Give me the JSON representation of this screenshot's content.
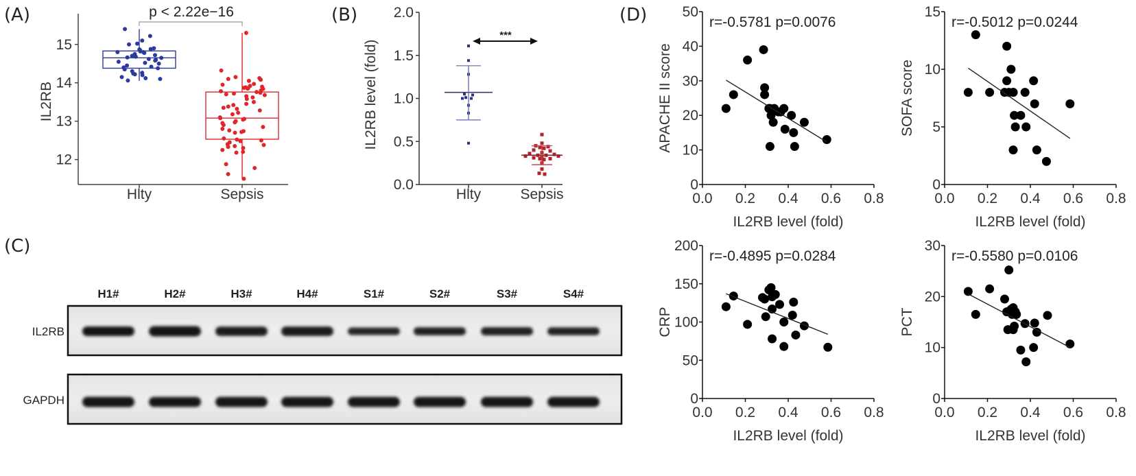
{
  "chart_data": [
    {
      "id": "A",
      "type": "box",
      "panel_label": "(A)",
      "ylabel": "IL2RB",
      "xlabel": "",
      "categories": [
        "Hlty",
        "Sepsis"
      ],
      "ylim": [
        11.35,
        15.8
      ],
      "yticks": [
        12,
        13,
        14,
        15
      ],
      "annotation": "p < 2.22e−16",
      "colors": {
        "Hlty": "#2b3a9e",
        "Sepsis": "#e0262a"
      },
      "boxes": [
        {
          "name": "Hlty",
          "q1": 14.38,
          "median": 14.65,
          "q3": 14.83,
          "whisker_low": 14.05,
          "whisker_high": 15.4
        },
        {
          "name": "Sepsis",
          "q1": 12.53,
          "median": 13.08,
          "q3": 13.76,
          "whisker_low": 11.5,
          "whisker_high": 15.3
        }
      ],
      "points": {
        "Hlty": [
          15.4,
          15.22,
          15.1,
          15.02,
          15.0,
          14.9,
          14.88,
          14.87,
          14.84,
          14.82,
          14.8,
          14.8,
          14.78,
          14.75,
          14.72,
          14.7,
          14.68,
          14.66,
          14.65,
          14.62,
          14.6,
          14.58,
          14.55,
          14.52,
          14.5,
          14.45,
          14.42,
          14.4,
          14.38,
          14.35,
          14.3,
          14.26,
          14.24,
          14.22,
          14.2,
          14.15,
          14.12,
          14.1,
          14.06
        ],
        "Sepsis": [
          15.3,
          14.32,
          14.15,
          14.12,
          14.1,
          14.08,
          14.05,
          13.97,
          13.95,
          13.92,
          13.9,
          13.88,
          13.87,
          13.86,
          13.85,
          13.84,
          13.8,
          13.78,
          13.76,
          13.74,
          13.72,
          13.7,
          13.68,
          13.65,
          13.62,
          13.58,
          13.5,
          13.45,
          13.42,
          13.38,
          13.35,
          13.32,
          13.28,
          13.22,
          13.18,
          13.1,
          13.08,
          13.06,
          13.04,
          13.0,
          12.97,
          12.95,
          12.9,
          12.85,
          12.8,
          12.76,
          12.74,
          12.72,
          12.7,
          12.55,
          12.52,
          12.5,
          12.48,
          12.45,
          12.4,
          12.38,
          12.35,
          12.33,
          12.3,
          12.25,
          12.2,
          12.18,
          11.88,
          11.78,
          11.62,
          11.5
        ]
      }
    },
    {
      "id": "B",
      "type": "scatter",
      "panel_label": "(B)",
      "ylabel": "IL2RB level (fold)",
      "xlabel": "",
      "categories": [
        "Hlty",
        "Sepsis"
      ],
      "ylim": [
        0.0,
        2.0
      ],
      "yticks": [
        "0.0",
        "0.5",
        "1.0",
        "1.5",
        "2.0"
      ],
      "annotation": "***",
      "colors": {
        "Hlty": "#2c2f8a",
        "Sepsis": "#b2222a"
      },
      "groups": [
        {
          "name": "Hlty",
          "mean": 1.07,
          "sd_low": 0.75,
          "sd_high": 1.38,
          "values": [
            1.61,
            1.44,
            1.28,
            1.05,
            1.04,
            1.01,
            1.0,
            1.0,
            0.92,
            0.83,
            0.48
          ]
        },
        {
          "name": "Sepsis",
          "mean": 0.34,
          "sd_low": 0.23,
          "sd_high": 0.45,
          "values": [
            0.58,
            0.48,
            0.45,
            0.44,
            0.43,
            0.42,
            0.4,
            0.39,
            0.37,
            0.36,
            0.35,
            0.34,
            0.34,
            0.33,
            0.33,
            0.32,
            0.31,
            0.3,
            0.3,
            0.29,
            0.25,
            0.18,
            0.13,
            0.12
          ]
        }
      ]
    },
    {
      "id": "D1",
      "type": "scatter",
      "panel_label": "(D)",
      "xlabel": "IL2RB level (fold)",
      "ylabel": "APACHE II score",
      "xlim": [
        0.0,
        0.8
      ],
      "ylim": [
        0,
        50
      ],
      "xticks": [
        "0.0",
        "0.2",
        "0.4",
        "0.6",
        "0.8"
      ],
      "yticks": [
        "0",
        "10",
        "20",
        "30",
        "40",
        "50"
      ],
      "annotation": "r=-0.5781  p=0.0076",
      "x": [
        0.11,
        0.145,
        0.21,
        0.285,
        0.29,
        0.29,
        0.31,
        0.315,
        0.32,
        0.33,
        0.335,
        0.315,
        0.355,
        0.365,
        0.38,
        0.385,
        0.415,
        0.425,
        0.43,
        0.475,
        0.58
      ],
      "y": [
        22,
        26,
        36,
        39,
        28,
        26,
        22,
        22,
        20,
        18,
        22,
        11,
        21,
        21,
        22,
        16,
        20,
        15,
        11,
        18,
        13
      ],
      "fit": {
        "x": [
          0.11,
          0.58
        ],
        "y": [
          30.2,
          12.3
        ]
      }
    },
    {
      "id": "D2",
      "type": "scatter",
      "panel_label": "",
      "xlabel": "IL2RB level (fold)",
      "ylabel": "SOFA score",
      "xlim": [
        0.0,
        0.8
      ],
      "ylim": [
        0,
        15
      ],
      "xticks": [
        "0.0",
        "0.2",
        "0.4",
        "0.6",
        "0.8"
      ],
      "yticks": [
        "0",
        "5",
        "10",
        "15"
      ],
      "annotation": "r=-0.5012  p=0.0244",
      "x": [
        0.11,
        0.145,
        0.21,
        0.29,
        0.28,
        0.29,
        0.3,
        0.31,
        0.32,
        0.325,
        0.32,
        0.33,
        0.355,
        0.375,
        0.38,
        0.415,
        0.42,
        0.32,
        0.43,
        0.475,
        0.585
      ],
      "y": [
        8,
        13,
        8,
        12,
        8,
        9,
        8,
        10,
        8,
        6,
        3,
        5,
        6,
        8,
        5,
        9,
        7,
        8,
        3,
        2,
        7
      ],
      "fit": {
        "x": [
          0.11,
          0.585
        ],
        "y": [
          10.1,
          4.0
        ]
      }
    },
    {
      "id": "D3",
      "type": "scatter",
      "panel_label": "",
      "xlabel": "IL2RB level (fold)",
      "ylabel": "CRP",
      "xlim": [
        0.0,
        0.8
      ],
      "ylim": [
        0,
        200
      ],
      "xticks": [
        "0.0",
        "0.2",
        "0.4",
        "0.6",
        "0.8"
      ],
      "yticks": [
        "0",
        "50",
        "100",
        "150",
        "200"
      ],
      "annotation": "r=-0.4895  p=0.0284",
      "x": [
        0.11,
        0.145,
        0.21,
        0.28,
        0.29,
        0.295,
        0.31,
        0.32,
        0.325,
        0.33,
        0.34,
        0.325,
        0.36,
        0.38,
        0.325,
        0.42,
        0.425,
        0.435,
        0.475,
        0.585,
        0.38
      ],
      "y": [
        120,
        134,
        97,
        132,
        130,
        107,
        142,
        145,
        133,
        135,
        136,
        117,
        123,
        100,
        78,
        109,
        126,
        83,
        95,
        67,
        68
      ],
      "fit": {
        "x": [
          0.11,
          0.585
        ],
        "y": [
          137,
          84
        ]
      }
    },
    {
      "id": "D4",
      "type": "scatter",
      "panel_label": "",
      "xlabel": "IL2RB level (fold)",
      "ylabel": "PCT",
      "xlim": [
        0.0,
        0.8
      ],
      "ylim": [
        0,
        30
      ],
      "xticks": [
        "0.0",
        "0.2",
        "0.4",
        "0.6",
        "0.8"
      ],
      "yticks": [
        "0",
        "10",
        "20",
        "30"
      ],
      "annotation": "r=-0.5580  p=0.0106",
      "x": [
        0.11,
        0.145,
        0.21,
        0.28,
        0.29,
        0.3,
        0.31,
        0.315,
        0.32,
        0.325,
        0.33,
        0.335,
        0.295,
        0.32,
        0.355,
        0.375,
        0.38,
        0.415,
        0.42,
        0.43,
        0.48,
        0.585
      ],
      "y": [
        21,
        16.5,
        21.5,
        19.5,
        17,
        25.2,
        17.5,
        16.5,
        17.8,
        14.2,
        17,
        16.5,
        13.5,
        13.5,
        9.5,
        14.7,
        7.2,
        10,
        14.8,
        13,
        16.3,
        10.7
      ],
      "fit": {
        "x": [
          0.11,
          0.585
        ],
        "y": [
          20.5,
          10.0
        ]
      }
    }
  ],
  "blot": {
    "panel_label": "(C)",
    "lanes": [
      "H1#",
      "H2#",
      "H3#",
      "H4#",
      "S1#",
      "S2#",
      "S3#",
      "S4#"
    ],
    "rows": [
      {
        "label": "IL2RB",
        "intensity": [
          0.9,
          1.0,
          0.82,
          0.85,
          0.55,
          0.65,
          0.68,
          0.6
        ]
      },
      {
        "label": "GAPDH",
        "intensity": [
          1.0,
          0.95,
          0.97,
          0.97,
          0.96,
          0.97,
          0.97,
          0.96
        ]
      }
    ]
  }
}
